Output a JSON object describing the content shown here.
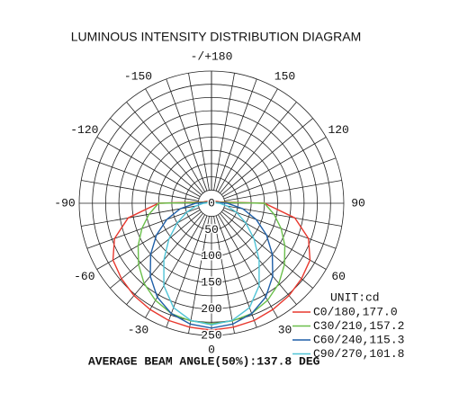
{
  "chart_data": {
    "type": "polar",
    "title": "LUMINOUS INTENSITY DISTRIBUTION DIAGRAM",
    "angles": [
      -180,
      -170,
      -160,
      -150,
      -140,
      -130,
      -120,
      -110,
      -100,
      -90,
      -80,
      -70,
      -60,
      -50,
      -40,
      -30,
      -20,
      -10,
      0,
      10,
      20,
      30,
      40,
      50,
      60,
      70,
      80,
      90,
      100,
      110,
      120,
      130,
      140,
      150,
      160,
      170,
      180
    ],
    "series": [
      {
        "name": "C0/180,177.0",
        "color": "#e8392f",
        "values": [
          3,
          3,
          4,
          4,
          5,
          6,
          8,
          10,
          15,
          100,
          160,
          195,
          215,
          222,
          228,
          232,
          236,
          238,
          240,
          238,
          236,
          232,
          228,
          222,
          215,
          195,
          160,
          100,
          15,
          10,
          8,
          6,
          5,
          4,
          4,
          3,
          3
        ]
      },
      {
        "name": "C30/210,157.2",
        "color": "#6abf4b",
        "values": [
          3,
          3,
          4,
          4,
          5,
          6,
          7,
          8,
          10,
          100,
          120,
          140,
          160,
          180,
          198,
          212,
          222,
          226,
          228,
          226,
          222,
          212,
          198,
          180,
          160,
          140,
          120,
          100,
          10,
          8,
          7,
          6,
          5,
          4,
          4,
          3,
          3
        ]
      },
      {
        "name": "C60/240,115.3",
        "color": "#1f5fa8",
        "values": [
          3,
          3,
          3,
          4,
          4,
          5,
          6,
          7,
          8,
          30,
          60,
          90,
          120,
          150,
          180,
          205,
          222,
          232,
          236,
          232,
          222,
          205,
          180,
          150,
          120,
          90,
          60,
          30,
          8,
          7,
          6,
          5,
          4,
          4,
          3,
          3,
          3
        ]
      },
      {
        "name": "C90/270,101.8",
        "color": "#4fc3d6",
        "values": [
          2,
          3,
          3,
          3,
          4,
          4,
          5,
          5,
          6,
          15,
          30,
          50,
          75,
          105,
          140,
          180,
          210,
          225,
          230,
          225,
          210,
          180,
          140,
          105,
          75,
          50,
          30,
          15,
          6,
          5,
          5,
          4,
          4,
          3,
          3,
          3,
          2
        ]
      }
    ],
    "rlim": [
      0,
      250
    ],
    "rticks": [
      0,
      50,
      100,
      150,
      200,
      250
    ],
    "rgrid": [
      25,
      50,
      75,
      100,
      125,
      150,
      175,
      200,
      225,
      250
    ],
    "thetaticks": [
      {
        "value": 180,
        "label": "-/+180"
      },
      150,
      120,
      90,
      60,
      30,
      0,
      -30,
      -60,
      -90,
      -120,
      -150
    ],
    "legend_title": "UNIT:cd",
    "footnote": "AVERAGE BEAM ANGLE(50%):137.8 DEG"
  }
}
